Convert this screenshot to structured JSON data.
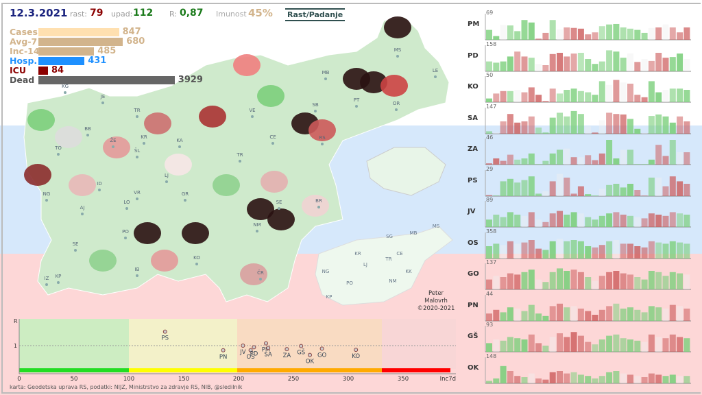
{
  "header": {
    "date": "12.3.2021",
    "rast_label": "rast:",
    "rast": "79",
    "upad_label": "upad:",
    "upad": "112",
    "r_label": "R:",
    "r": "0,87",
    "imunost_label": "Imunost",
    "imunost": "45%",
    "toggle": "Rast/Padanje"
  },
  "stats": [
    {
      "label": "Cases",
      "value": "847",
      "color": "#ffe0b0",
      "lc": "#d2b48c",
      "pct": 0.42
    },
    {
      "label": "Avg-7",
      "value": "680",
      "color": "#d2b48c",
      "lc": "#d2b48c",
      "pct": 0.44
    },
    {
      "label": "Inc-14",
      "value": "485",
      "color": "#d2b48c",
      "lc": "#d2b48c",
      "pct": 0.29
    },
    {
      "label": "Hosp.",
      "value": "431",
      "color": "#1e90ff",
      "lc": "#1e90ff",
      "pct": 0.24
    },
    {
      "label": "ICU",
      "value": "84",
      "color": "#8b0000",
      "lc": "#8b0000",
      "pct": 0.05
    },
    {
      "label": "Dead",
      "value": "3929",
      "color": "#666666",
      "lc": "#555555",
      "pct": 0.71
    }
  ],
  "map": {
    "labels": [
      "KG",
      "JE",
      "TR",
      "BB",
      "ŽE",
      "ŠL",
      "KR",
      "KA",
      "TO",
      "ID",
      "VR",
      "LJ",
      "GR",
      "NG",
      "AJ",
      "LO",
      "PO",
      "SE",
      "IB",
      "IZ",
      "KP",
      "KO",
      "ČR",
      "NM",
      "BR",
      "SE",
      "TR",
      "CE",
      "VE",
      "SB",
      "RS",
      "MB",
      "PT",
      "OR",
      "MS",
      "LE"
    ],
    "mini_labels": [
      "MS",
      "MB",
      "SG",
      "KR",
      "CE",
      "TR",
      "LJ",
      "NG",
      "PO",
      "NM",
      "KK",
      "KP"
    ],
    "signature": [
      "Peter",
      "Malovrh",
      "©2020-2021"
    ]
  },
  "regions": [
    {
      "code": "PM",
      "max": "69",
      "v": [
        0.4,
        0.15,
        0.6,
        0.58,
        0.35,
        0.8,
        0.7,
        0.05,
        0.28,
        0.8,
        0.42,
        0.5,
        0.48,
        0.45,
        0.22,
        0.3,
        0.55,
        0.62,
        0.64,
        0.5,
        0.45,
        0.4,
        0.28,
        0.48,
        0.5,
        0.62,
        0.5,
        0.3,
        0.5
      ]
    },
    {
      "code": "PD",
      "max": "158",
      "v": [
        0.4,
        0.35,
        0.4,
        0.6,
        0.8,
        0.6,
        0.55,
        0.3,
        0.25,
        0.7,
        0.75,
        0.6,
        0.72,
        0.75,
        0.5,
        0.3,
        0.4,
        0.85,
        0.8,
        0.55,
        0.72,
        0.38,
        0.5,
        0.42,
        0.75,
        0.55,
        0.58,
        0.72,
        0.5
      ]
    },
    {
      "code": "KO",
      "max": "50",
      "v": [
        0.15,
        0.35,
        0.45,
        0.45,
        0.5,
        0.4,
        0.6,
        0.3,
        0.05,
        0.55,
        0.35,
        0.5,
        0.55,
        0.45,
        0.4,
        0.3,
        0.85,
        0.7,
        0.9,
        0.8,
        0.75,
        0.3,
        0.2,
        0.85,
        0.4,
        0.5,
        0.55,
        0.55,
        0.5
      ]
    },
    {
      "code": "SA",
      "max": "147",
      "v": [
        0.1,
        0.05,
        0.5,
        0.8,
        0.45,
        0.5,
        0.7,
        0.25,
        0.05,
        0.65,
        0.85,
        0.7,
        0.92,
        0.8,
        0.3,
        0.05,
        0.55,
        0.85,
        0.8,
        0.78,
        0.6,
        0.2,
        0.02,
        0.72,
        0.78,
        0.7,
        0.45,
        0.7,
        0.5
      ]
    },
    {
      "code": "ZA",
      "max": "46",
      "v": [
        0.05,
        0.25,
        0.15,
        0.4,
        0.2,
        0.25,
        0.45,
        0.02,
        0.15,
        0.45,
        0.6,
        0.65,
        0.3,
        0.3,
        0.38,
        0.18,
        0.45,
        1,
        0.25,
        0.6,
        0.6,
        0.02,
        0.02,
        0.2,
        0.8,
        0.35,
        1,
        0.5,
        0.5
      ]
    },
    {
      "code": "PS",
      "max": "29",
      "v": [
        0.05,
        0.03,
        0.6,
        0.7,
        0.55,
        0.65,
        0.8,
        0.1,
        0.2,
        0.6,
        0.9,
        0.75,
        0.1,
        0.4,
        0.08,
        0.02,
        0.3,
        0.45,
        0.5,
        0.35,
        0.5,
        0.25,
        0.02,
        0.75,
        0.75,
        0.4,
        0.8,
        0.6,
        0.5
      ]
    },
    {
      "code": "JV",
      "max": "89",
      "v": [
        0.3,
        0.5,
        0.4,
        0.6,
        0.5,
        0.45,
        0.6,
        0.3,
        0.2,
        0.55,
        0.65,
        0.5,
        0.6,
        0.55,
        0.4,
        0.3,
        0.45,
        0.55,
        0.6,
        0.5,
        0.45,
        0.4,
        0.35,
        0.55,
        0.5,
        0.45,
        0.6,
        0.55,
        0.5
      ]
    },
    {
      "code": "OS",
      "max": "358",
      "v": [
        0.5,
        0.6,
        0.55,
        0.7,
        0.6,
        0.65,
        0.75,
        0.4,
        0.35,
        0.7,
        0.8,
        0.7,
        0.75,
        0.7,
        0.5,
        0.45,
        0.55,
        0.7,
        0.75,
        0.6,
        0.6,
        0.5,
        0.45,
        0.7,
        0.65,
        0.6,
        0.7,
        0.65,
        0.6
      ]
    },
    {
      "code": "GO",
      "max": "137",
      "v": [
        0.4,
        0.55,
        0.5,
        0.65,
        0.6,
        0.7,
        0.8,
        0.4,
        0.3,
        0.7,
        0.85,
        0.75,
        0.8,
        0.7,
        0.5,
        0.35,
        0.55,
        0.7,
        0.75,
        0.65,
        0.6,
        0.5,
        0.4,
        0.75,
        0.7,
        0.55,
        0.7,
        0.65,
        0.6
      ]
    },
    {
      "code": "PN",
      "max": "44",
      "v": [
        0.3,
        0.45,
        0.35,
        0.55,
        0.5,
        0.4,
        0.65,
        0.3,
        0.2,
        0.6,
        0.7,
        0.55,
        0.6,
        0.5,
        0.4,
        0.25,
        0.45,
        0.6,
        0.7,
        0.5,
        0.55,
        0.45,
        0.35,
        0.6,
        0.55,
        0.5,
        0.65,
        0.6,
        0.5
      ]
    },
    {
      "code": "GŠ",
      "max": "93",
      "v": [
        0.35,
        0.5,
        0.45,
        0.6,
        0.55,
        0.5,
        0.7,
        0.35,
        0.25,
        0.6,
        0.75,
        0.6,
        0.8,
        0.65,
        0.4,
        0.3,
        0.5,
        0.65,
        0.7,
        0.55,
        0.5,
        0.45,
        0.4,
        0.7,
        0.6,
        0.55,
        0.7,
        0.6,
        0.55
      ]
    },
    {
      "code": "OK",
      "max": "148",
      "v": [
        0.1,
        0.2,
        0.7,
        0.5,
        0.3,
        0.25,
        0.4,
        0.2,
        0.15,
        0.45,
        0.5,
        0.4,
        0.45,
        0.35,
        0.3,
        0.2,
        0.3,
        0.45,
        0.5,
        0.4,
        0.35,
        0.3,
        0.25,
        0.4,
        0.35,
        0.3,
        0.35,
        0.3,
        0.3
      ]
    }
  ],
  "trend": [
    -0.5,
    -0.6,
    0.1,
    -0.3,
    -0.4,
    -0.5,
    -0.6,
    0.2,
    0.3,
    -0.3,
    0.1,
    0.2,
    0.4,
    0.5,
    0.3,
    0.2,
    -0.2,
    -0.4,
    -0.5,
    -0.3,
    -0.3,
    -0.5,
    -0.4,
    0.1,
    0.3,
    0.1,
    0.2,
    0.3,
    0.4
  ],
  "colors": {
    "green": "#7ccf7c",
    "red": "#cc5a5a",
    "neutral": "#eeeeee"
  },
  "scatter": {
    "y_label": "R",
    "y_tick": "1",
    "x_label": "Inc7d",
    "x_ticks": [
      0,
      50,
      100,
      150,
      200,
      250,
      300,
      350
    ],
    "points": [
      {
        "name": "PS",
        "x": 133,
        "y": 1.6
      },
      {
        "name": "PN",
        "x": 186,
        "y": 0.8
      },
      {
        "name": "JV",
        "x": 204,
        "y": 1.0
      },
      {
        "name": "OS",
        "x": 211,
        "y": 0.8
      },
      {
        "name": "PD",
        "x": 214,
        "y": 0.93
      },
      {
        "name": "PM",
        "x": 225,
        "y": 1.1
      },
      {
        "name": "SA",
        "x": 227,
        "y": 0.9
      },
      {
        "name": "ZA",
        "x": 244,
        "y": 0.85
      },
      {
        "name": "GŠ",
        "x": 257,
        "y": 0.98
      },
      {
        "name": "OK",
        "x": 265,
        "y": 0.6
      },
      {
        "name": "GO",
        "x": 276,
        "y": 0.87
      },
      {
        "name": "KO",
        "x": 307,
        "y": 0.82
      }
    ]
  },
  "source": "karta: Geodetska uprava RS,  podatki: NIJZ, Ministrstvo za zdravje RS, NIB, @sledilnik"
}
